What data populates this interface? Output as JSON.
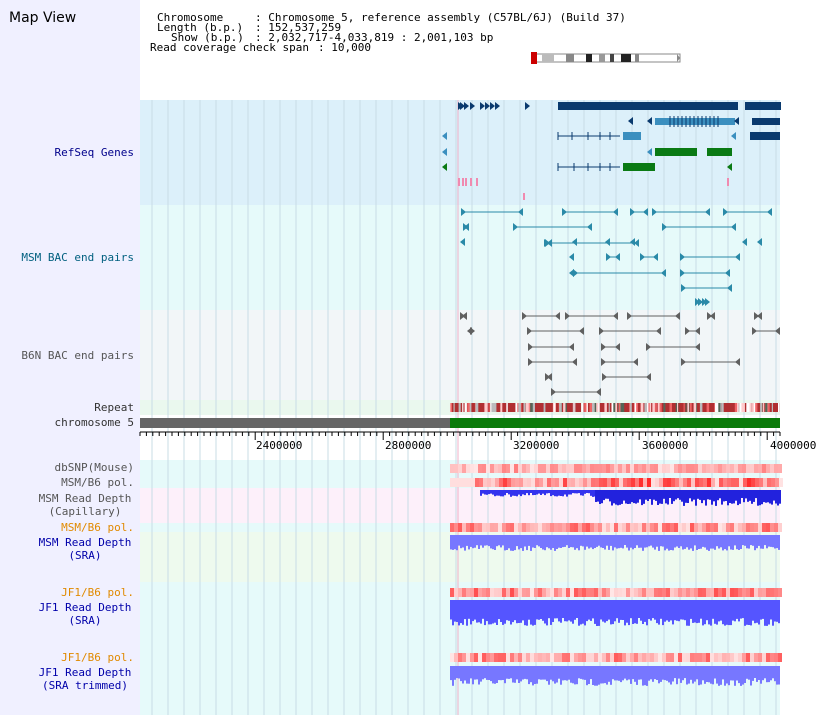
{
  "title": "Map View",
  "header": {
    "chromosome_label": "Chromosome",
    "chromosome_value": ": Chromosome 5, reference assembly (C57BL/6J) (Build 37)",
    "length_label": "Length (b.p.)",
    "length_value": ": 152,537,259",
    "show_label": "Show (b.p.)",
    "show_value": ": 2,032,717-4,033,819 : 2,001,103 bp",
    "coverage_label": "Read coverage check span",
    "coverage_value": ": 10,000"
  },
  "tracks": {
    "refseq": "RefSeq Genes",
    "msm_bac": "MSM BAC end pairs",
    "b6n_bac": "B6N BAC end pairs",
    "repeat": "Repeat",
    "chromosome": "chromosome 5",
    "dbsnp": "dbSNP(Mouse)",
    "msm_b6_pol_1": "MSM/B6 pol.",
    "msm_read_depth_cap_1": "MSM Read Depth",
    "msm_read_depth_cap_2": "(Capillary)",
    "msm_b6_pol_2": "MSM/B6 pol.",
    "msm_read_depth_sra_1": "MSM Read Depth",
    "msm_read_depth_sra_2": "(SRA)",
    "jf1_b6_pol_1": "JF1/B6 pol.",
    "jf1_read_depth_sra_1": "JF1 Read Depth",
    "jf1_read_depth_sra_2": "(SRA)",
    "jf1_b6_pol_2": "JF1/B6 pol.",
    "jf1_read_depth_trim_1": "JF1 Read Depth",
    "jf1_read_depth_trim_2": "(SRA trimmed)"
  },
  "ruler": {
    "ticks": [
      "2400000",
      "2800000",
      "3200000",
      "3600000",
      "4000000"
    ]
  },
  "colors": {
    "refseq_bg": "#dcf0fa",
    "bac_bg": "#e6fafa",
    "b6n_bg": "#f2f6f8",
    "refseq_dark": "#0a3a6e",
    "refseq_mid": "#3b8fbf",
    "refseq_green": "#0a7a14",
    "msm_line": "#2a8aa8",
    "b6n_line": "#606060",
    "chrom_gray": "#666666",
    "chrom_green": "#0a7a0a",
    "depth_blue": "#3333ee",
    "depth_light": "#7777ff",
    "pol_red": "#ff3333"
  }
}
